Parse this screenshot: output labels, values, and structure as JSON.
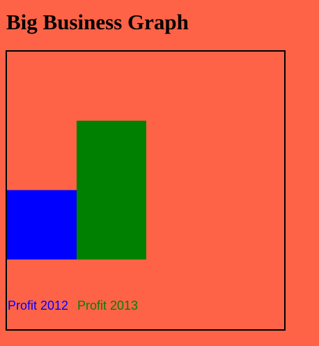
{
  "page": {
    "title": "Big Business Graph"
  },
  "chart_data": {
    "type": "bar",
    "title": "Big Business Graph",
    "categories": [
      "Profit 2012",
      "Profit 2013"
    ],
    "values": [
      100,
      200
    ],
    "colors": [
      "#0000FF",
      "#008000"
    ],
    "ylim": [
      0,
      400
    ],
    "xlabel": "",
    "ylabel": "",
    "grid": false,
    "legend": "none"
  },
  "colors": {
    "background": "#FF6347",
    "frame": "#000000"
  }
}
